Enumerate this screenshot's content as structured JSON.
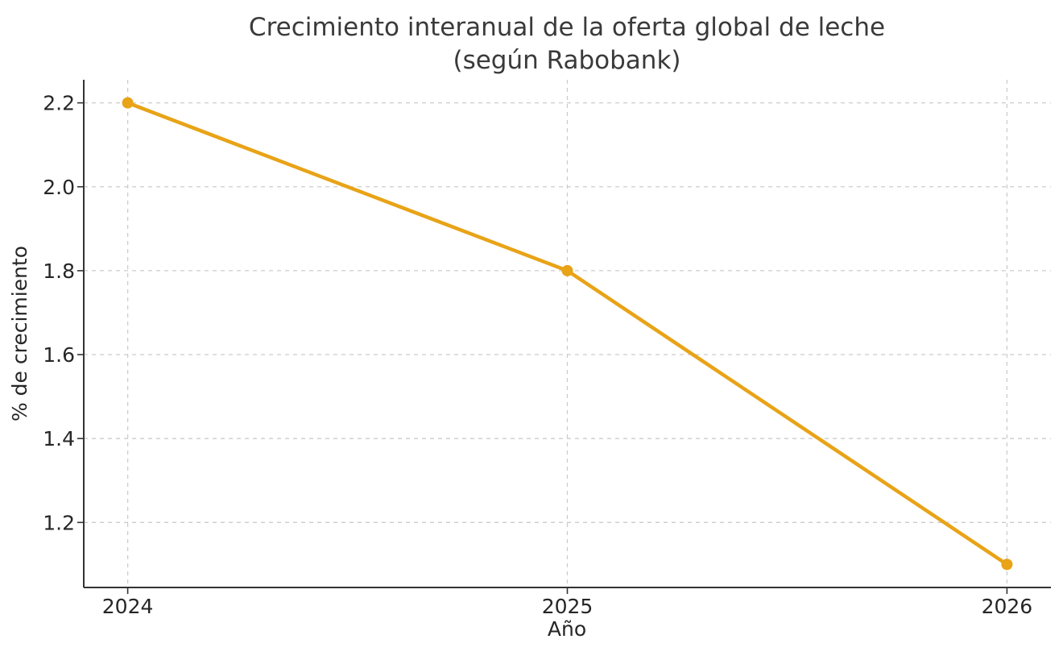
{
  "chart_data": {
    "type": "line",
    "title_lines": [
      "Crecimiento interanual de la oferta global de leche",
      "(según Rabobank)"
    ],
    "title": "Crecimiento interanual de la oferta global de leche (según Rabobank)",
    "xlabel": "Año",
    "ylabel": "% de crecimiento",
    "x": [
      2024,
      2025,
      2026
    ],
    "values": [
      2.2,
      1.8,
      1.1
    ],
    "xticks": [
      2024,
      2025,
      2026
    ],
    "xtick_labels": [
      "2024",
      "2025",
      "2026"
    ],
    "yticks": [
      1.2,
      1.4,
      1.6,
      1.8,
      2.0,
      2.2
    ],
    "ytick_labels": [
      "1.2",
      "1.4",
      "1.6",
      "1.8",
      "2.0",
      "2.2"
    ],
    "xlim": [
      2023.9,
      2026.1
    ],
    "ylim": [
      1.045,
      2.255
    ],
    "grid": true,
    "grid_style": "dashed",
    "legend": false,
    "marker": "circle",
    "colors": {
      "line": "#E8A317",
      "grid": "#cccccc",
      "spine": "#333333",
      "tick_label": "#262626",
      "title": "#3a3a3a",
      "background": "#ffffff"
    }
  }
}
